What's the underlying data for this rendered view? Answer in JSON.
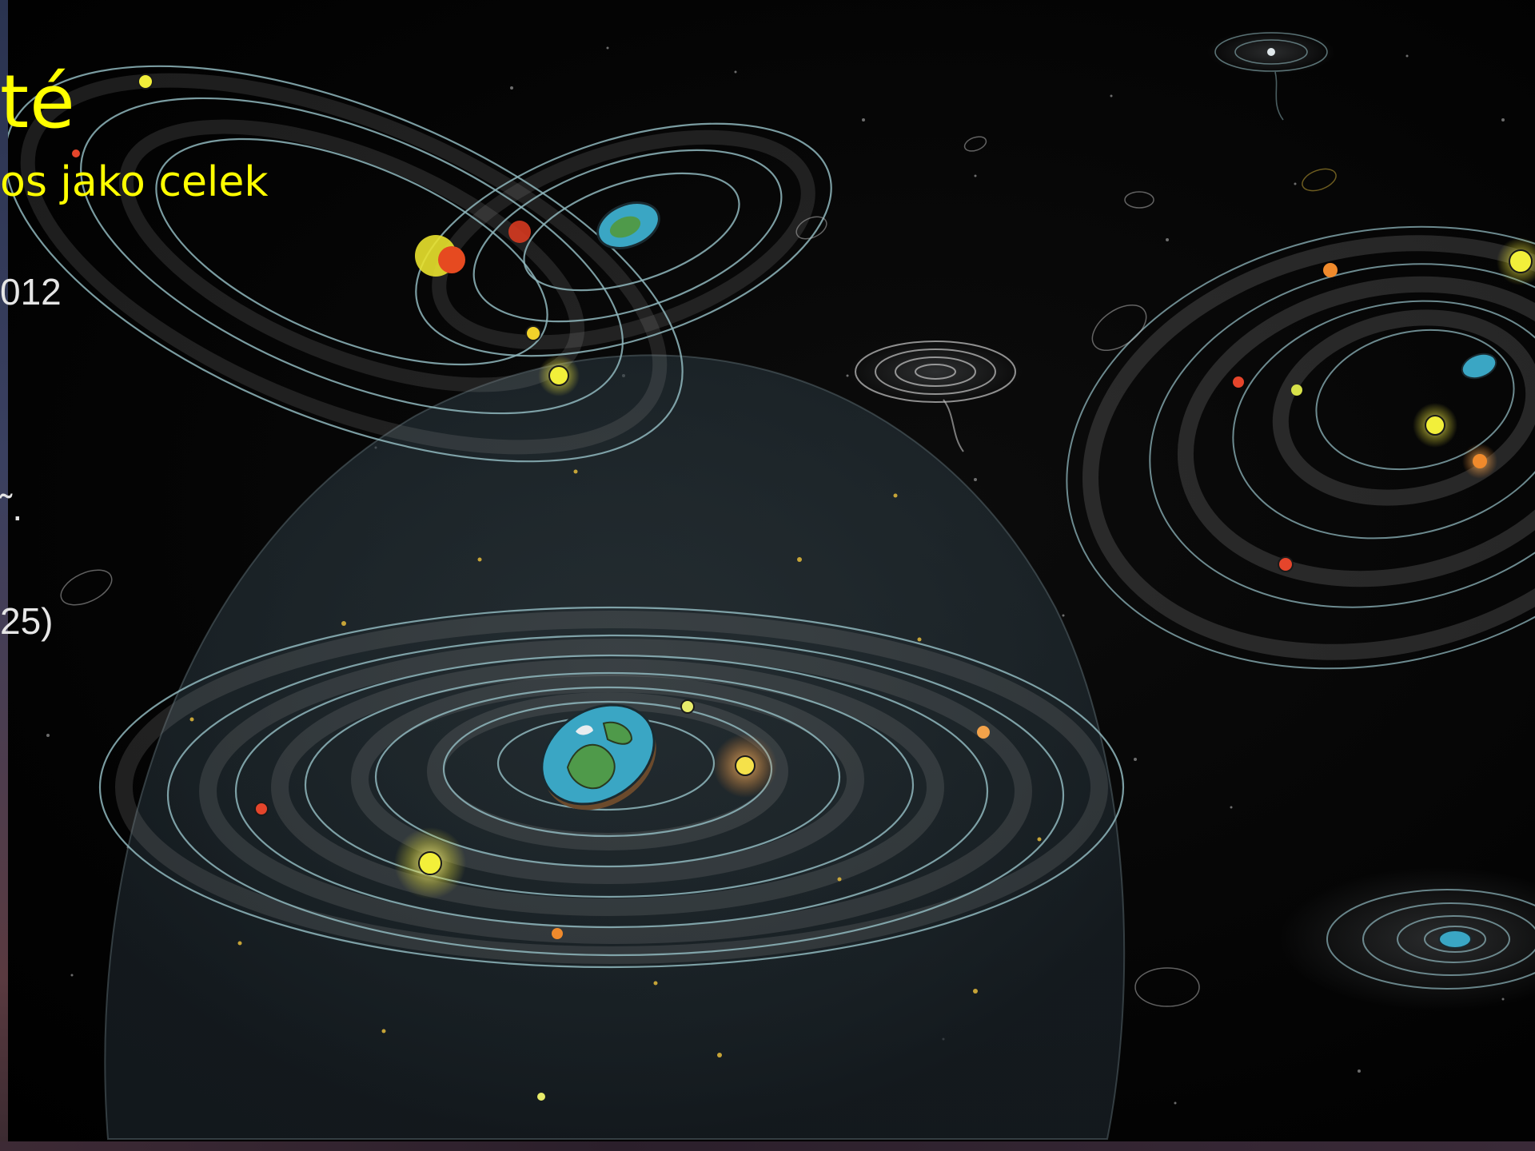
{
  "slide": {
    "title": "té",
    "subtitle": "os jako celek",
    "lines": [
      "012",
      "˜.",
      "25)"
    ]
  },
  "colors": {
    "title": "#ffff00",
    "body_text": "#e6e6e6",
    "orbit": "#8fb7bd",
    "sun": "#f2ef3a",
    "red_planet": "#e5452b",
    "orange_planet": "#f08a2c",
    "sphere": "#2c3a42",
    "background": "#050505"
  },
  "icons": [
    "flat-earth-disc-icon",
    "sun-icon",
    "planet-icon",
    "galaxy-icon"
  ]
}
